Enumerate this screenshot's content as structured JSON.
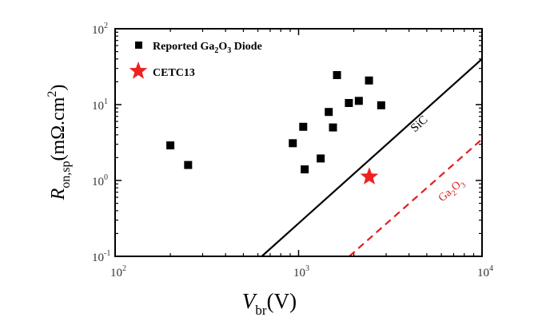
{
  "chart_data": {
    "type": "scatter",
    "title": "",
    "xlabel": "V_br(V)",
    "ylabel": "R_on,sp(mΩ.cm²)",
    "x_scale": "log",
    "y_scale": "log",
    "xlim": [
      100,
      10000
    ],
    "ylim": [
      0.1,
      100
    ],
    "x_ticks": [
      {
        "value": 100,
        "base": "10",
        "exp": "2"
      },
      {
        "value": 1000,
        "base": "10",
        "exp": "3"
      },
      {
        "value": 10000,
        "base": "10",
        "exp": "4"
      }
    ],
    "y_ticks": [
      {
        "value": 0.1,
        "base": "10",
        "exp": "-1"
      },
      {
        "value": 1,
        "base": "10",
        "exp": "0"
      },
      {
        "value": 10,
        "base": "10",
        "exp": "1"
      },
      {
        "value": 100,
        "base": "10",
        "exp": "2"
      }
    ],
    "legend": {
      "placement": "top-left",
      "entries": [
        {
          "label": "Reported Ga2O3 Diode",
          "marker": "square"
        },
        {
          "label": "CETC13",
          "marker": "star"
        }
      ]
    },
    "series": [
      {
        "name": "Reported Ga2O3 Diode",
        "marker": "square",
        "color": "#000000",
        "points": [
          {
            "x": 200,
            "y": 2.9
          },
          {
            "x": 250,
            "y": 1.6
          },
          {
            "x": 930,
            "y": 3.1
          },
          {
            "x": 1060,
            "y": 5.1
          },
          {
            "x": 1080,
            "y": 1.4
          },
          {
            "x": 1320,
            "y": 1.95
          },
          {
            "x": 1460,
            "y": 8.0
          },
          {
            "x": 1540,
            "y": 5.0
          },
          {
            "x": 1620,
            "y": 24.5
          },
          {
            "x": 1880,
            "y": 10.5
          },
          {
            "x": 2130,
            "y": 11.2
          },
          {
            "x": 2420,
            "y": 20.8
          },
          {
            "x": 2820,
            "y": 9.8
          }
        ]
      },
      {
        "name": "CETC13",
        "marker": "star",
        "color": "#ee2222",
        "points": [
          {
            "x": 2430,
            "y": 1.12
          }
        ]
      }
    ],
    "limit_lines": [
      {
        "name": "SiC",
        "label": "SiC",
        "style": "solid",
        "color": "#000000",
        "points": [
          {
            "x": 630,
            "y": 0.1
          },
          {
            "x": 10000,
            "y": 40
          }
        ]
      },
      {
        "name": "Ga2O3",
        "label": "Ga2O3",
        "style": "dashed",
        "color": "#e02020",
        "points": [
          {
            "x": 1890,
            "y": 0.1
          },
          {
            "x": 10000,
            "y": 3.5
          }
        ]
      }
    ]
  }
}
